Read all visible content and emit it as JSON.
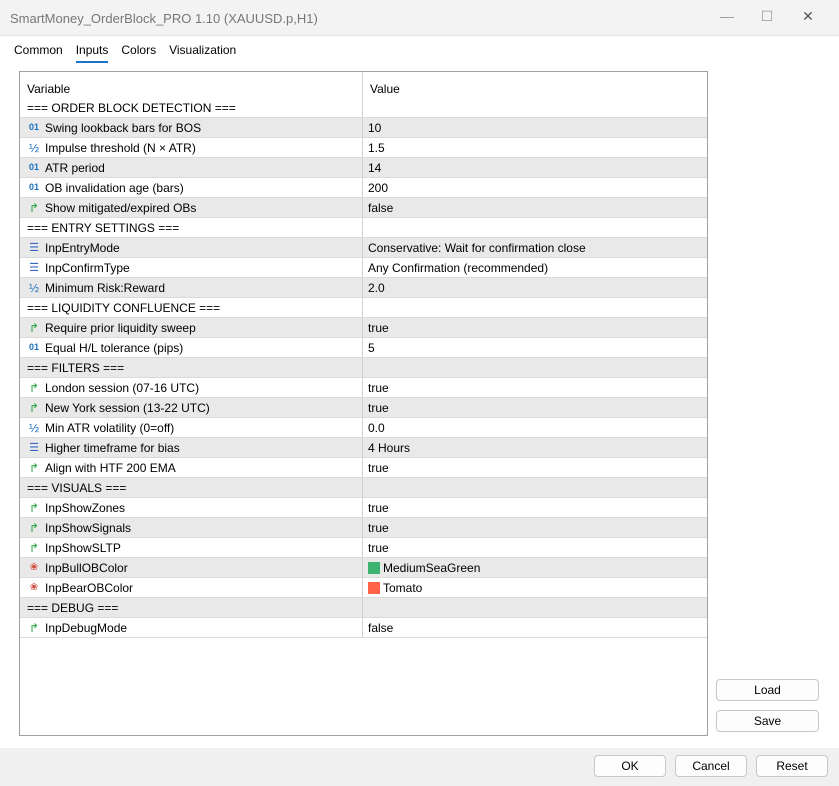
{
  "window": {
    "title": "SmartMoney_OrderBlock_PRO 1.10 (XAUUSD.p,H1)",
    "minimize": "—",
    "maximize": "☐",
    "close": "✕"
  },
  "tabs": [
    {
      "label": "Common"
    },
    {
      "label": "Inputs",
      "active": true
    },
    {
      "label": "Colors"
    },
    {
      "label": "Visualization"
    }
  ],
  "table": {
    "headers": {
      "variable": "Variable",
      "value": "Value"
    },
    "rows": [
      {
        "type": "section",
        "variable": "=== ORDER BLOCK DETECTION ===",
        "value": ""
      },
      {
        "type": "int",
        "icon": "int-icon",
        "variable": "Swing lookback bars for BOS",
        "value": "10"
      },
      {
        "type": "double",
        "icon": "double-icon",
        "variable": "Impulse threshold (N × ATR)",
        "value": "1.5"
      },
      {
        "type": "int",
        "icon": "int-icon",
        "variable": "ATR period",
        "value": "14"
      },
      {
        "type": "int",
        "icon": "int-icon",
        "variable": "OB invalidation age (bars)",
        "value": "200"
      },
      {
        "type": "bool",
        "icon": "bool-icon",
        "variable": "Show mitigated/expired OBs",
        "value": "false"
      },
      {
        "type": "section",
        "variable": "=== ENTRY SETTINGS ===",
        "value": ""
      },
      {
        "type": "enum",
        "icon": "enum-icon",
        "variable": "InpEntryMode",
        "value": "Conservative: Wait for confirmation close"
      },
      {
        "type": "enum",
        "icon": "enum-icon",
        "variable": "InpConfirmType",
        "value": "Any Confirmation (recommended)"
      },
      {
        "type": "double",
        "icon": "double-icon",
        "variable": "Minimum Risk:Reward",
        "value": "2.0"
      },
      {
        "type": "section",
        "variable": "=== LIQUIDITY CONFLUENCE ===",
        "value": ""
      },
      {
        "type": "bool",
        "icon": "bool-icon",
        "variable": "Require prior liquidity sweep",
        "value": "true"
      },
      {
        "type": "int",
        "icon": "int-icon",
        "variable": "Equal H/L tolerance (pips)",
        "value": "5"
      },
      {
        "type": "section",
        "variable": "=== FILTERS ===",
        "value": ""
      },
      {
        "type": "bool",
        "icon": "bool-icon",
        "variable": "London session (07-16 UTC)",
        "value": "true"
      },
      {
        "type": "bool",
        "icon": "bool-icon",
        "variable": "New York session (13-22 UTC)",
        "value": "true"
      },
      {
        "type": "double",
        "icon": "double-icon",
        "variable": "Min ATR volatility (0=off)",
        "value": "0.0"
      },
      {
        "type": "enum",
        "icon": "enum-icon",
        "variable": "Higher timeframe for bias",
        "value": "4 Hours"
      },
      {
        "type": "bool",
        "icon": "bool-icon",
        "variable": "Align with HTF 200 EMA",
        "value": "true"
      },
      {
        "type": "section",
        "variable": "=== VISUALS ===",
        "value": ""
      },
      {
        "type": "bool",
        "icon": "bool-icon",
        "variable": "InpShowZones",
        "value": "true"
      },
      {
        "type": "bool",
        "icon": "bool-icon",
        "variable": "InpShowSignals",
        "value": "true"
      },
      {
        "type": "bool",
        "icon": "bool-icon",
        "variable": "InpShowSLTP",
        "value": "true"
      },
      {
        "type": "color",
        "icon": "color-icon",
        "variable": "InpBullOBColor",
        "value": "MediumSeaGreen",
        "swatch": "#3cb371"
      },
      {
        "type": "color",
        "icon": "color-icon",
        "variable": "InpBearOBColor",
        "value": "Tomato",
        "swatch": "#ff6347"
      },
      {
        "type": "section",
        "variable": "=== DEBUG ===",
        "value": ""
      },
      {
        "type": "bool",
        "icon": "bool-icon",
        "variable": "InpDebugMode",
        "value": "false"
      }
    ]
  },
  "buttons": {
    "load": "Load",
    "save": "Save",
    "ok": "OK",
    "cancel": "Cancel",
    "reset": "Reset"
  }
}
